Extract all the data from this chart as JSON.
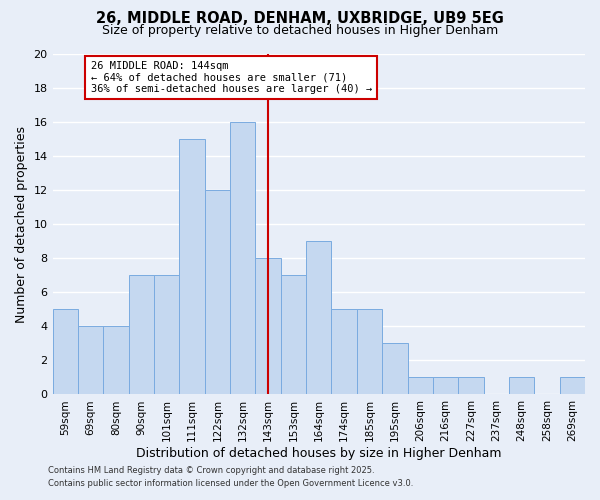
{
  "title": "26, MIDDLE ROAD, DENHAM, UXBRIDGE, UB9 5EG",
  "subtitle": "Size of property relative to detached houses in Higher Denham",
  "xlabel": "Distribution of detached houses by size in Higher Denham",
  "ylabel": "Number of detached properties",
  "bin_labels": [
    "59sqm",
    "69sqm",
    "80sqm",
    "90sqm",
    "101sqm",
    "111sqm",
    "122sqm",
    "132sqm",
    "143sqm",
    "153sqm",
    "164sqm",
    "174sqm",
    "185sqm",
    "195sqm",
    "206sqm",
    "216sqm",
    "227sqm",
    "237sqm",
    "248sqm",
    "258sqm",
    "269sqm"
  ],
  "bar_values": [
    5,
    4,
    4,
    7,
    7,
    15,
    12,
    16,
    8,
    7,
    9,
    5,
    5,
    3,
    1,
    1,
    1,
    0,
    1,
    0,
    1
  ],
  "bar_color": "#c5d8f0",
  "bar_edge_color": "#7aabe0",
  "bg_color": "#e8eef8",
  "plot_bg_color": "#e8eef8",
  "grid_color": "#ffffff",
  "vline_bin_index": 8,
  "vline_color": "#cc0000",
  "annotation_text": "26 MIDDLE ROAD: 144sqm\n← 64% of detached houses are smaller (71)\n36% of semi-detached houses are larger (40) →",
  "annotation_box_color": "#ffffff",
  "annotation_box_edge": "#cc0000",
  "ylim": [
    0,
    20
  ],
  "yticks": [
    0,
    2,
    4,
    6,
    8,
    10,
    12,
    14,
    16,
    18,
    20
  ],
  "footer_line1": "Contains HM Land Registry data © Crown copyright and database right 2025.",
  "footer_line2": "Contains public sector information licensed under the Open Government Licence v3.0."
}
